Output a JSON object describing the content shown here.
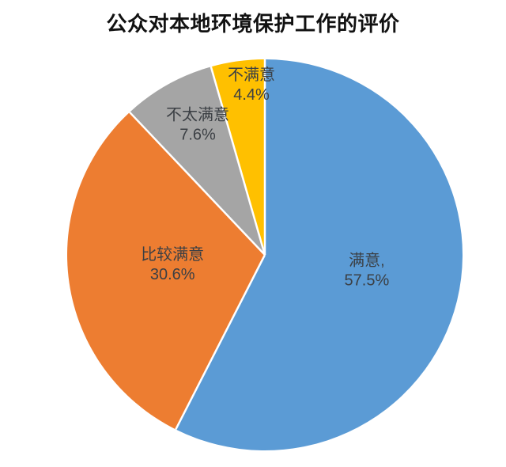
{
  "chart_data": {
    "type": "pie",
    "title": "公众对本地环境保护工作的评价",
    "categories": [
      "满意",
      "比较满意",
      "不太满意",
      "不满意"
    ],
    "values": [
      57.5,
      30.6,
      7.6,
      4.4
    ],
    "value_unit": "%",
    "start_angle_deg": 0,
    "direction": "clockwise",
    "legend": "none",
    "slice_colors": [
      "#5B9BD5",
      "#ED7D31",
      "#A5A5A5",
      "#FFC000"
    ],
    "slice_labels": [
      {
        "name": "满意,",
        "value": "57.5%"
      },
      {
        "name": "比较满意",
        "value": "30.6%"
      },
      {
        "name": "不太满意",
        "value": "7.6%"
      },
      {
        "name": "不满意",
        "value": "4.4%"
      }
    ],
    "label_text_color": "#3B3F44",
    "separator_color": "#FFFFFF",
    "title_color": "#111111",
    "background_color": "#FFFFFF"
  }
}
